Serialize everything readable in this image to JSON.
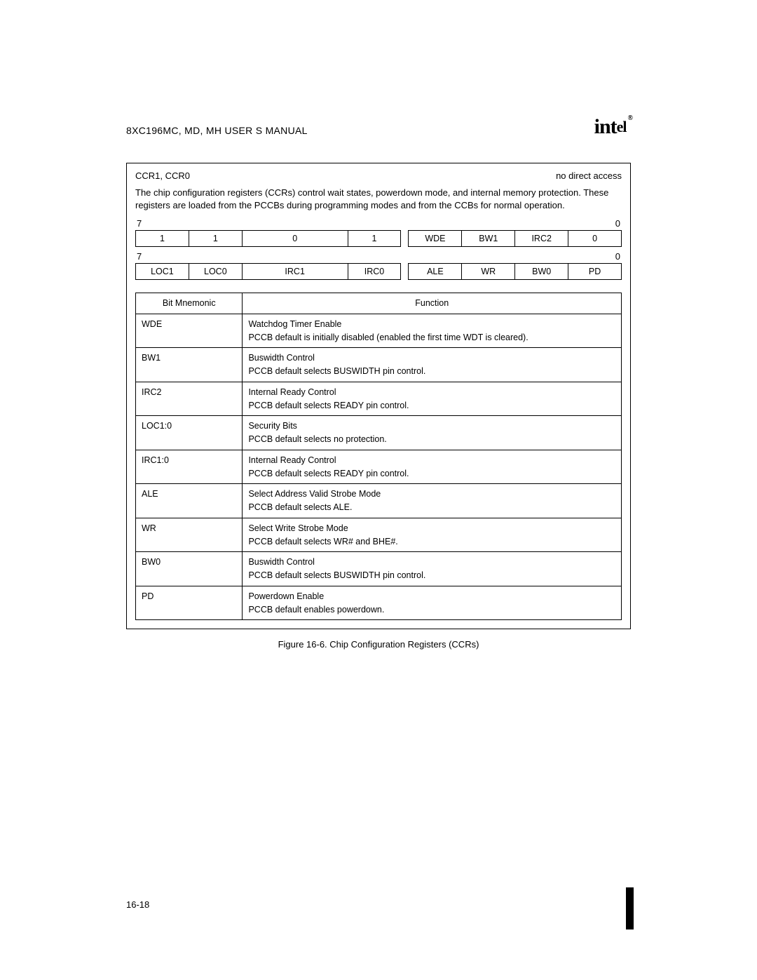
{
  "doc_title": "8XC196MC, MD, MH USER S MANUAL",
  "logo_text": "int",
  "logo_sub": "el",
  "logo_reg": "®",
  "reg_name": "CCR1, CCR0",
  "access": "no direct access",
  "description": "The chip configuration registers (CCRs) control wait states, powerdown mode, and internal memory protection. These registers are loaded from the PCCBs during programming modes and from the CCBs for normal operation.",
  "bit_high": "7",
  "bit_low": "0",
  "row1": {
    "b7": "1",
    "b6": "1",
    "b5": "0",
    "b4": "1",
    "b3": "WDE",
    "b2": "BW1",
    "b1": "IRC2",
    "b0": "0"
  },
  "row2": {
    "b7": "LOC1",
    "b6": "LOC0",
    "b5": "IRC1",
    "b4": "IRC0",
    "b3": "ALE",
    "b2": "WR",
    "b1": "BW0",
    "b0": "PD"
  },
  "table": {
    "hdr_mn": "Bit Mnemonic",
    "hdr_fn": "Function",
    "rows": [
      {
        "mn": "WDE",
        "fn_line1": "Watchdog Timer Enable",
        "fn_line2": "PCCB default is initially disabled (enabled the first time WDT is cleared)."
      },
      {
        "mn": "BW1",
        "fn_line1": "Buswidth Control",
        "fn_line2": "PCCB default selects BUSWIDTH pin control."
      },
      {
        "mn": "IRC2",
        "fn_line1": "Internal Ready Control",
        "fn_line2": "PCCB default selects READY pin control."
      },
      {
        "mn": "LOC1:0",
        "fn_line1": "Security Bits",
        "fn_line2": "PCCB default selects no protection."
      },
      {
        "mn": "IRC1:0",
        "fn_line1": "Internal Ready Control",
        "fn_line2": "PCCB default selects READY pin control."
      },
      {
        "mn": "ALE",
        "fn_line1": "Select Address Valid Strobe Mode",
        "fn_line2": "PCCB default selects ALE."
      },
      {
        "mn": "WR",
        "fn_line1": "Select Write Strobe Mode",
        "fn_line2": "PCCB default selects WR# and BHE#."
      },
      {
        "mn": "BW0",
        "fn_line1": "Buswidth Control",
        "fn_line2": "PCCB default selects BUSWIDTH pin control."
      },
      {
        "mn": "PD",
        "fn_line1": "Powerdown Enable",
        "fn_line2": "PCCB default enables powerdown."
      }
    ]
  },
  "caption": "Figure 16-6.  Chip Configuration Registers (CCRs)",
  "page_number": "16-18"
}
